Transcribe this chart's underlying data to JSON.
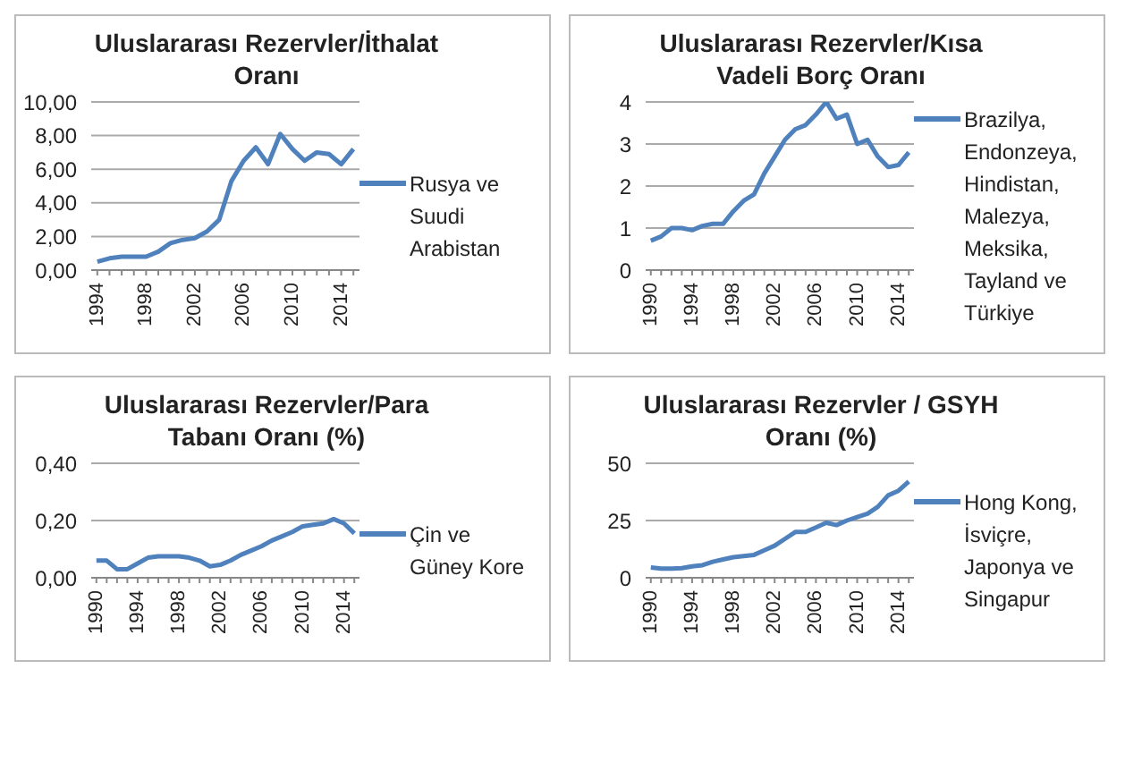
{
  "chart_data": [
    {
      "type": "line",
      "title": "Uluslararası Rezervler/İthalat Oranı",
      "categories": [
        "1994",
        null,
        null,
        null,
        "1998",
        null,
        null,
        null,
        "2002",
        null,
        null,
        null,
        "2006",
        null,
        null,
        null,
        "2010",
        null,
        null,
        null,
        "2014",
        null
      ],
      "series": [
        {
          "name": "Rusya ve Suudi Arabistan",
          "color": "#4f81bd",
          "values": [
            0.5,
            0.7,
            0.8,
            0.8,
            0.8,
            1.1,
            1.6,
            1.8,
            1.9,
            2.3,
            3.0,
            5.3,
            6.5,
            7.3,
            6.3,
            8.1,
            7.2,
            6.5,
            7.0,
            6.9,
            6.3,
            7.2
          ]
        }
      ],
      "ylim": [
        0,
        10
      ],
      "yticks": [
        {
          "value": 0,
          "label": "0,00"
        },
        {
          "value": 2,
          "label": "2,00"
        },
        {
          "value": 4,
          "label": "4,00"
        },
        {
          "value": 6,
          "label": "6,00"
        },
        {
          "value": 8,
          "label": "8,00"
        },
        {
          "value": 10,
          "label": "10,00"
        }
      ],
      "grid": "y",
      "legend": "right",
      "marker": "none"
    },
    {
      "type": "line",
      "title": "Uluslararası Rezervler/Kısa Vadeli Borç Oranı",
      "categories": [
        "1990",
        null,
        null,
        null,
        "1994",
        null,
        null,
        null,
        "1998",
        null,
        null,
        null,
        "2002",
        null,
        null,
        null,
        "2006",
        null,
        null,
        null,
        "2010",
        null,
        null,
        null,
        "2014",
        null
      ],
      "series": [
        {
          "name": "Brazilya, Endonzeya, Hindistan, Malezya, Meksika, Tayland ve Türkiye",
          "color": "#4f81bd",
          "values": [
            0.7,
            0.8,
            1.0,
            1.0,
            0.95,
            1.05,
            1.1,
            1.1,
            1.4,
            1.65,
            1.8,
            2.3,
            2.7,
            3.1,
            3.35,
            3.45,
            3.7,
            4.0,
            3.6,
            3.7,
            3.0,
            3.1,
            2.7,
            2.45,
            2.5,
            2.8
          ]
        }
      ],
      "ylim": [
        0,
        4
      ],
      "yticks": [
        0,
        1,
        2,
        3,
        4
      ],
      "grid": "y",
      "legend": "right",
      "marker": "none"
    },
    {
      "type": "line",
      "title": "Uluslararası Rezervler/Para Tabanı Oranı (%)",
      "categories": [
        "1990",
        null,
        null,
        null,
        "1994",
        null,
        null,
        null,
        "1998",
        null,
        null,
        null,
        "2002",
        null,
        null,
        null,
        "2006",
        null,
        null,
        null,
        "2010",
        null,
        null,
        null,
        "2014",
        null
      ],
      "series": [
        {
          "name": "Çin ve Güney Kore",
          "color": "#4f81bd",
          "values": [
            0.06,
            0.06,
            0.03,
            0.03,
            0.05,
            0.07,
            0.075,
            0.075,
            0.075,
            0.07,
            0.06,
            0.04,
            0.045,
            0.06,
            0.08,
            0.095,
            0.11,
            0.13,
            0.145,
            0.16,
            0.18,
            0.185,
            0.19,
            0.205,
            0.19,
            0.155
          ]
        }
      ],
      "ylim": [
        0,
        0.4
      ],
      "yticks": [
        {
          "value": 0,
          "label": "0,00"
        },
        {
          "value": 0.2,
          "label": "0,20"
        },
        {
          "value": 0.4,
          "label": "0,40"
        }
      ],
      "grid": "y",
      "legend": "right",
      "marker": "none"
    },
    {
      "type": "line",
      "title": "Uluslararası Rezervler / GSYH Oranı (%)",
      "categories": [
        "1990",
        null,
        null,
        null,
        "1994",
        null,
        null,
        null,
        "1998",
        null,
        null,
        null,
        "2002",
        null,
        null,
        null,
        "2006",
        null,
        null,
        null,
        "2010",
        null,
        null,
        null,
        "2014",
        null
      ],
      "series": [
        {
          "name": "Hong Kong, İsviçre, Japonya ve Singapur",
          "color": "#4f81bd",
          "values": [
            4.5,
            4,
            4,
            4.2,
            5,
            5.5,
            7,
            8,
            9,
            9.5,
            10,
            12,
            14,
            17,
            20,
            20,
            22,
            24,
            23,
            25,
            26.5,
            28,
            31,
            36,
            38,
            42
          ]
        }
      ],
      "ylim": [
        0,
        50
      ],
      "yticks": [
        0,
        25,
        50
      ],
      "grid": "y",
      "legend": "right",
      "marker": "none"
    }
  ]
}
